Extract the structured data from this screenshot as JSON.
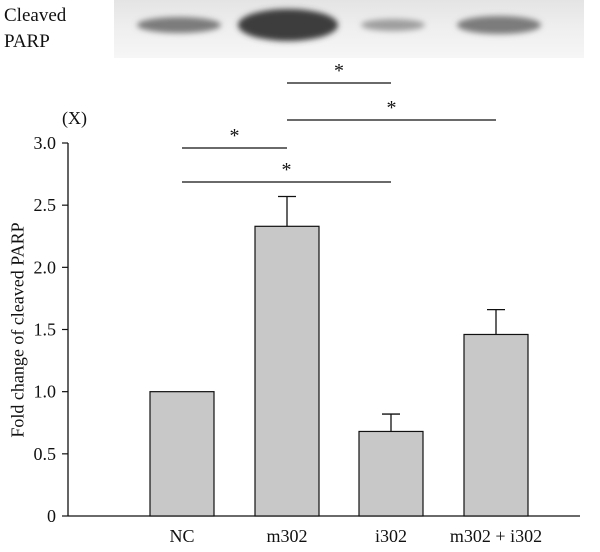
{
  "blot": {
    "label_line1": "Cleaved",
    "label_line2": "PARP",
    "lane_intensity": [
      0.55,
      1.0,
      0.3,
      0.55
    ]
  },
  "chart_data": {
    "type": "bar",
    "categories": [
      "NC",
      "m302",
      "i302",
      "m302 + i302"
    ],
    "values": [
      1.0,
      2.33,
      0.68,
      1.46
    ],
    "errors": [
      0,
      0.24,
      0.14,
      0.2
    ],
    "ylabel": "Fold change of cleaved PARP",
    "yunit": "(X)",
    "ylim": [
      0,
      3.0
    ],
    "yticks": [
      "0",
      "0.5",
      "1.0",
      "1.5",
      "2.0",
      "2.5",
      "3.0"
    ],
    "bar_color": "#c8c8c8",
    "significance": [
      {
        "from": 0,
        "to": 1,
        "label": "*"
      },
      {
        "from": 0,
        "to": 2,
        "label": "*"
      },
      {
        "from": 1,
        "to": 2,
        "label": "*"
      },
      {
        "from": 1,
        "to": 3,
        "label": "*"
      }
    ]
  }
}
